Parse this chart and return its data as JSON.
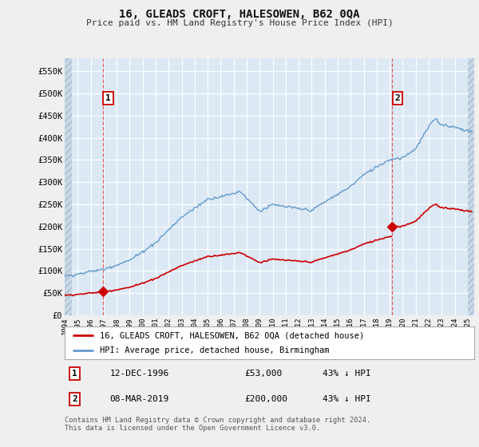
{
  "title": "16, GLEADS CROFT, HALESOWEN, B62 0QA",
  "subtitle": "Price paid vs. HM Land Registry's House Price Index (HPI)",
  "xlim_start": 1994.0,
  "xlim_end": 2025.5,
  "ylim_min": 0,
  "ylim_max": 580000,
  "yticks": [
    0,
    50000,
    100000,
    150000,
    200000,
    250000,
    300000,
    350000,
    400000,
    450000,
    500000,
    550000
  ],
  "ytick_labels": [
    "£0",
    "£50K",
    "£100K",
    "£150K",
    "£200K",
    "£250K",
    "£300K",
    "£350K",
    "£400K",
    "£450K",
    "£500K",
    "£550K"
  ],
  "xticks": [
    1994,
    1995,
    1996,
    1997,
    1998,
    1999,
    2000,
    2001,
    2002,
    2003,
    2004,
    2005,
    2006,
    2007,
    2008,
    2009,
    2010,
    2011,
    2012,
    2013,
    2014,
    2015,
    2016,
    2017,
    2018,
    2019,
    2020,
    2021,
    2022,
    2023,
    2024,
    2025
  ],
  "sale1_x": 1996.95,
  "sale1_y": 53000,
  "sale2_x": 2019.19,
  "sale2_y": 200000,
  "sale_color": "#cc0000",
  "hpi_color": "#6699cc",
  "legend_sale_label": "16, GLEADS CROFT, HALESOWEN, B62 0QA (detached house)",
  "legend_hpi_label": "HPI: Average price, detached house, Birmingham",
  "note1_label": "1",
  "note1_date": "12-DEC-1996",
  "note1_price": "£53,000",
  "note1_hpi": "43% ↓ HPI",
  "note2_label": "2",
  "note2_date": "08-MAR-2019",
  "note2_price": "£200,000",
  "note2_hpi": "43% ↓ HPI",
  "footer": "Contains HM Land Registry data © Crown copyright and database right 2024.\nThis data is licensed under the Open Government Licence v3.0.",
  "bg_color": "#efefef",
  "plot_bg_color": "#dce9f5",
  "hatch_bg_color": "#c8d8e8",
  "grid_color": "#ffffff",
  "dashed_line_color": "#dd4444"
}
